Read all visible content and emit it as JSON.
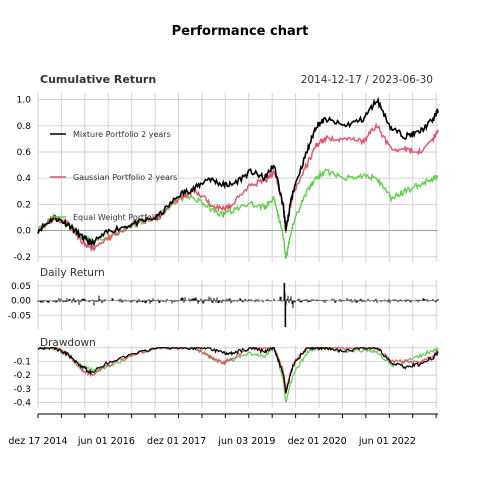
{
  "title": "Performance chart",
  "panels": {
    "cumulative": {
      "label": "Cumulative Return",
      "date_range": "2014-12-17 / 2023-06-30"
    },
    "daily": {
      "label": "Daily Return"
    },
    "drawdown": {
      "label": "Drawdown"
    }
  },
  "x_ticks": [
    "dez 17 2014",
    "jun 01 2016",
    "dez 01 2017",
    "jun 03 2019",
    "dez 01 2020",
    "jun 01 2022"
  ],
  "colors": {
    "mixture": "#000000",
    "gaussian": "#DF536B",
    "equal": "#61D04F",
    "grid": "#d3d3d3",
    "zero": "#a0a0a0"
  },
  "chart_data": [
    {
      "type": "line",
      "panel": "Cumulative Return",
      "title": "Cumulative Return",
      "subtitle": "2014-12-17 / 2023-06-30",
      "x": [
        2014.96,
        2015.3,
        2015.6,
        2015.9,
        2016.1,
        2016.5,
        2017.0,
        2017.5,
        2018.0,
        2018.3,
        2018.6,
        2018.9,
        2019.1,
        2019.5,
        2019.8,
        2020.0,
        2020.2,
        2020.25,
        2020.4,
        2020.7,
        2020.9,
        2021.1,
        2021.5,
        2021.9,
        2022.2,
        2022.5,
        2022.8,
        2023.1,
        2023.4,
        2023.5
      ],
      "series": [
        {
          "name": "Mixture Portfolio 2 years",
          "values": [
            0.0,
            0.1,
            0.05,
            -0.05,
            -0.1,
            0.0,
            0.05,
            0.1,
            0.28,
            0.32,
            0.4,
            0.35,
            0.35,
            0.45,
            0.4,
            0.5,
            0.18,
            0.0,
            0.3,
            0.6,
            0.8,
            0.85,
            0.8,
            0.85,
            1.0,
            0.78,
            0.72,
            0.75,
            0.85,
            0.92
          ]
        },
        {
          "name": "Gaussian Portfolio 2 years",
          "values": [
            0.0,
            0.1,
            0.05,
            -0.08,
            -0.15,
            -0.05,
            0.05,
            0.1,
            0.25,
            0.3,
            0.22,
            0.16,
            0.2,
            0.35,
            0.38,
            0.45,
            0.2,
            0.0,
            0.28,
            0.5,
            0.65,
            0.7,
            0.7,
            0.68,
            0.8,
            0.62,
            0.62,
            0.6,
            0.7,
            0.77
          ]
        },
        {
          "name": "Equal Weight Portfolio",
          "values": [
            0.0,
            0.1,
            0.05,
            -0.05,
            -0.08,
            -0.05,
            0.05,
            0.1,
            0.25,
            0.25,
            0.18,
            0.12,
            0.15,
            0.2,
            0.18,
            0.25,
            -0.05,
            -0.22,
            0.05,
            0.3,
            0.4,
            0.45,
            0.4,
            0.42,
            0.4,
            0.25,
            0.3,
            0.35,
            0.4,
            0.42
          ]
        }
      ],
      "y_ticks": [
        1.0,
        0.8,
        0.6,
        0.4,
        0.2,
        0.0,
        -0.2
      ],
      "ylim": [
        -0.24,
        1.05
      ],
      "legend": "left"
    },
    {
      "type": "bar",
      "panel": "Daily Return",
      "title": "Daily Return",
      "series": [
        {
          "values": []
        }
      ],
      "y_ticks": [
        0.05,
        0.0,
        -0.05
      ],
      "ylim": [
        -0.1,
        0.07
      ],
      "extremes": {
        "max": 0.06,
        "min": -0.09
      }
    },
    {
      "type": "line",
      "panel": "Drawdown",
      "title": "Drawdown",
      "x": [
        2014.96,
        2015.3,
        2015.6,
        2015.9,
        2016.1,
        2016.5,
        2017.0,
        2017.5,
        2018.0,
        2018.3,
        2018.6,
        2018.9,
        2019.1,
        2019.5,
        2019.8,
        2020.0,
        2020.2,
        2020.25,
        2020.4,
        2020.7,
        2020.9,
        2021.1,
        2021.5,
        2021.9,
        2022.2,
        2022.5,
        2022.8,
        2023.1,
        2023.4,
        2023.5
      ],
      "series": [
        {
          "name": "Mixture Portfolio 2 years",
          "values": [
            0.0,
            0.0,
            -0.05,
            -0.14,
            -0.18,
            -0.1,
            -0.05,
            0.0,
            0.0,
            0.0,
            0.0,
            -0.04,
            -0.04,
            0.0,
            -0.03,
            0.0,
            -0.2,
            -0.33,
            -0.13,
            0.0,
            0.0,
            0.0,
            -0.03,
            0.0,
            0.0,
            -0.11,
            -0.14,
            -0.12,
            -0.07,
            -0.03
          ]
        },
        {
          "name": "Gaussian Portfolio 2 years",
          "values": [
            0.0,
            0.0,
            -0.05,
            -0.16,
            -0.2,
            -0.12,
            -0.05,
            0.0,
            0.0,
            0.0,
            -0.06,
            -0.11,
            -0.08,
            0.0,
            0.0,
            0.0,
            -0.17,
            -0.31,
            -0.12,
            0.0,
            0.0,
            0.0,
            0.0,
            -0.01,
            0.0,
            -0.1,
            -0.1,
            -0.11,
            -0.06,
            -0.02
          ]
        },
        {
          "name": "Equal Weight Portfolio",
          "values": [
            0.0,
            0.0,
            -0.05,
            -0.14,
            -0.16,
            -0.14,
            -0.05,
            0.0,
            0.0,
            0.0,
            -0.06,
            -0.11,
            -0.09,
            -0.04,
            -0.06,
            0.0,
            -0.24,
            -0.4,
            -0.2,
            -0.04,
            0.0,
            0.0,
            -0.03,
            -0.02,
            -0.03,
            -0.13,
            -0.1,
            -0.06,
            -0.02,
            -0.01
          ]
        }
      ],
      "y_ticks": [
        -0.1,
        -0.2,
        -0.3,
        -0.4
      ],
      "ylim": [
        -0.44,
        0.02
      ]
    }
  ]
}
